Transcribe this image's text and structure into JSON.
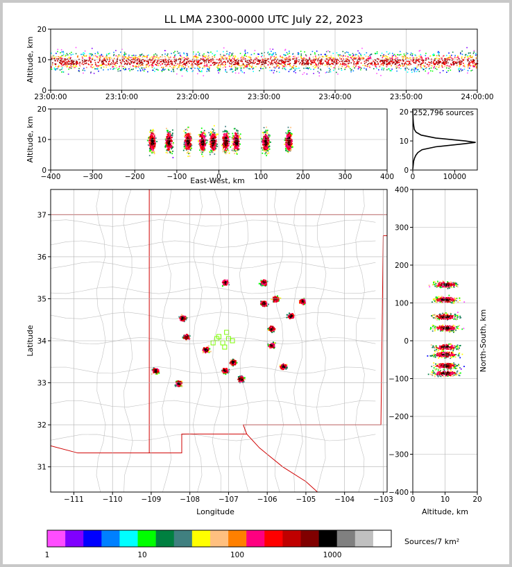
{
  "title": "LL LMA 2300-0000 UTC July 22, 2023",
  "chart_data": [
    {
      "panel": "altitude-time",
      "type": "heatmap",
      "xlabel": "",
      "ylabel": "Altitude, km",
      "x_ticks": [
        "23:00:00",
        "23:10:00",
        "23:20:00",
        "23:30:00",
        "23:40:00",
        "23:50:00",
        "24:00:00"
      ],
      "xlim": [
        "23:00:00",
        "24:00:00"
      ],
      "ylim": [
        0,
        20
      ],
      "y_ticks": [
        0,
        10,
        20
      ],
      "grid": true,
      "peak_altitude_km": 9.5
    },
    {
      "panel": "east-west-altitude",
      "type": "heatmap",
      "xlabel": "East-West, km",
      "ylabel": "Altitude, km",
      "xlim": [
        -400,
        400
      ],
      "x_ticks": [
        -400,
        -300,
        -200,
        -100,
        0,
        100,
        200,
        300,
        400
      ],
      "ylim": [
        0,
        20
      ],
      "y_ticks": [
        0,
        10,
        20
      ],
      "grid": true,
      "cluster_centers_x_km": [
        -160,
        -120,
        -75,
        -40,
        -15,
        15,
        40,
        110,
        165
      ]
    },
    {
      "panel": "altitude-histogram",
      "type": "line",
      "annotation": "252,796 sources",
      "xlim": [
        0,
        15400
      ],
      "x_ticks": [
        0,
        10000
      ],
      "ylim": [
        0,
        21
      ],
      "y_ticks": [
        0,
        10,
        20
      ],
      "peak": {
        "altitude_km": 9.5,
        "count": 15000
      },
      "profile": [
        {
          "alt": 0.3,
          "count": 0
        },
        {
          "alt": 3,
          "count": 200
        },
        {
          "alt": 4,
          "count": 400
        },
        {
          "alt": 5,
          "count": 700
        },
        {
          "alt": 6,
          "count": 1200
        },
        {
          "alt": 7,
          "count": 2200
        },
        {
          "alt": 8,
          "count": 5500
        },
        {
          "alt": 9,
          "count": 12000
        },
        {
          "alt": 9.5,
          "count": 15000
        },
        {
          "alt": 10,
          "count": 12500
        },
        {
          "alt": 11,
          "count": 5500
        },
        {
          "alt": 12,
          "count": 2000
        },
        {
          "alt": 13,
          "count": 800
        },
        {
          "alt": 14,
          "count": 350
        },
        {
          "alt": 16,
          "count": 150
        },
        {
          "alt": 18,
          "count": 50
        },
        {
          "alt": 21,
          "count": 0
        }
      ]
    },
    {
      "panel": "plan-view",
      "type": "heatmap",
      "xlabel": "Longitude",
      "ylabel": "Latitude",
      "xlim": [
        -111.6,
        -102.9
      ],
      "x_ticks": [
        -111,
        -110,
        -109,
        -108,
        -107,
        -106,
        -105,
        -104,
        -103
      ],
      "ylim": [
        30.4,
        37.6
      ],
      "y_ticks": [
        31,
        32,
        33,
        34,
        35,
        36,
        37
      ],
      "grid": true,
      "storm_cells": [
        {
          "lon": -107.1,
          "lat": 35.4
        },
        {
          "lon": -106.1,
          "lat": 35.4
        },
        {
          "lon": -105.8,
          "lat": 35.0
        },
        {
          "lon": -106.1,
          "lat": 34.9
        },
        {
          "lon": -105.1,
          "lat": 34.95
        },
        {
          "lon": -105.4,
          "lat": 34.6
        },
        {
          "lon": -108.2,
          "lat": 34.55
        },
        {
          "lon": -108.1,
          "lat": 34.1
        },
        {
          "lon": -105.9,
          "lat": 34.3
        },
        {
          "lon": -107.6,
          "lat": 33.8
        },
        {
          "lon": -105.9,
          "lat": 33.9
        },
        {
          "lon": -106.9,
          "lat": 33.5
        },
        {
          "lon": -105.6,
          "lat": 33.4
        },
        {
          "lon": -108.9,
          "lat": 33.3
        },
        {
          "lon": -108.3,
          "lat": 33.0
        },
        {
          "lon": -106.7,
          "lat": 33.1
        },
        {
          "lon": -107.1,
          "lat": 33.3
        }
      ],
      "stations": [
        {
          "lon": -107.3,
          "lat": 34.05
        },
        {
          "lon": -107.15,
          "lat": 33.95
        },
        {
          "lon": -107.05,
          "lat": 34.2
        },
        {
          "lon": -106.9,
          "lat": 34.0
        },
        {
          "lon": -107.4,
          "lat": 33.95
        },
        {
          "lon": -107.0,
          "lat": 34.05
        },
        {
          "lon": -107.1,
          "lat": 33.85
        },
        {
          "lon": -107.25,
          "lat": 34.1
        }
      ]
    },
    {
      "panel": "altitude-north-south",
      "type": "heatmap",
      "xlabel": "Altitude, km",
      "ylabel": "North-South, km",
      "xlim": [
        0,
        20
      ],
      "x_ticks": [
        0,
        10,
        20
      ],
      "ylim": [
        -400,
        400
      ],
      "y_ticks": [
        -400,
        -300,
        -200,
        -100,
        0,
        100,
        200,
        300,
        400
      ],
      "grid": true,
      "cluster_centers_y_km": [
        150,
        110,
        65,
        35,
        -15,
        -35,
        -65,
        -85
      ]
    }
  ],
  "colorbar": {
    "label": "Sources/7 km²",
    "tick_labels": [
      "1",
      "10",
      "100",
      "1000"
    ],
    "colors": [
      "#ff4dff",
      "#8000ff",
      "#0000ff",
      "#0080ff",
      "#00ffff",
      "#00ff00",
      "#008040",
      "#408080",
      "#ffff00",
      "#ffc080",
      "#ff8000",
      "#ff0080",
      "#ff0000",
      "#c00000",
      "#800000",
      "#000000",
      "#808080",
      "#c0c0c0",
      "#ffffff"
    ]
  }
}
